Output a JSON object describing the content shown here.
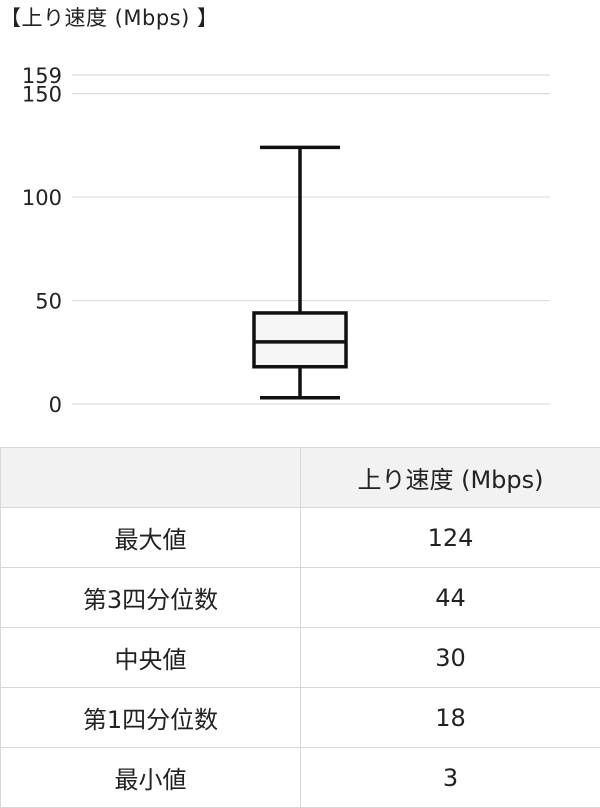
{
  "chart_data": {
    "type": "box",
    "title": "【上り速度 (Mbps) 】",
    "y_ticks": [
      0,
      50,
      100,
      150,
      159
    ],
    "ylim": [
      0,
      159
    ],
    "grid": true,
    "series": [
      {
        "name": "上り速度 (Mbps)",
        "min": 3,
        "q1": 18,
        "median": 30,
        "q3": 44,
        "max": 124
      }
    ],
    "colors": {
      "box_fill": "#f5f5f5",
      "stroke": "#111111",
      "grid": "#dddddd"
    }
  },
  "table": {
    "header": [
      "",
      "上り速度 (Mbps)"
    ],
    "rows": [
      {
        "label": "最大値",
        "value": "124"
      },
      {
        "label": "第3四分位数",
        "value": "44"
      },
      {
        "label": "中央値",
        "value": "30"
      },
      {
        "label": "第1四分位数",
        "value": "18"
      },
      {
        "label": "最小値",
        "value": "3"
      }
    ]
  }
}
